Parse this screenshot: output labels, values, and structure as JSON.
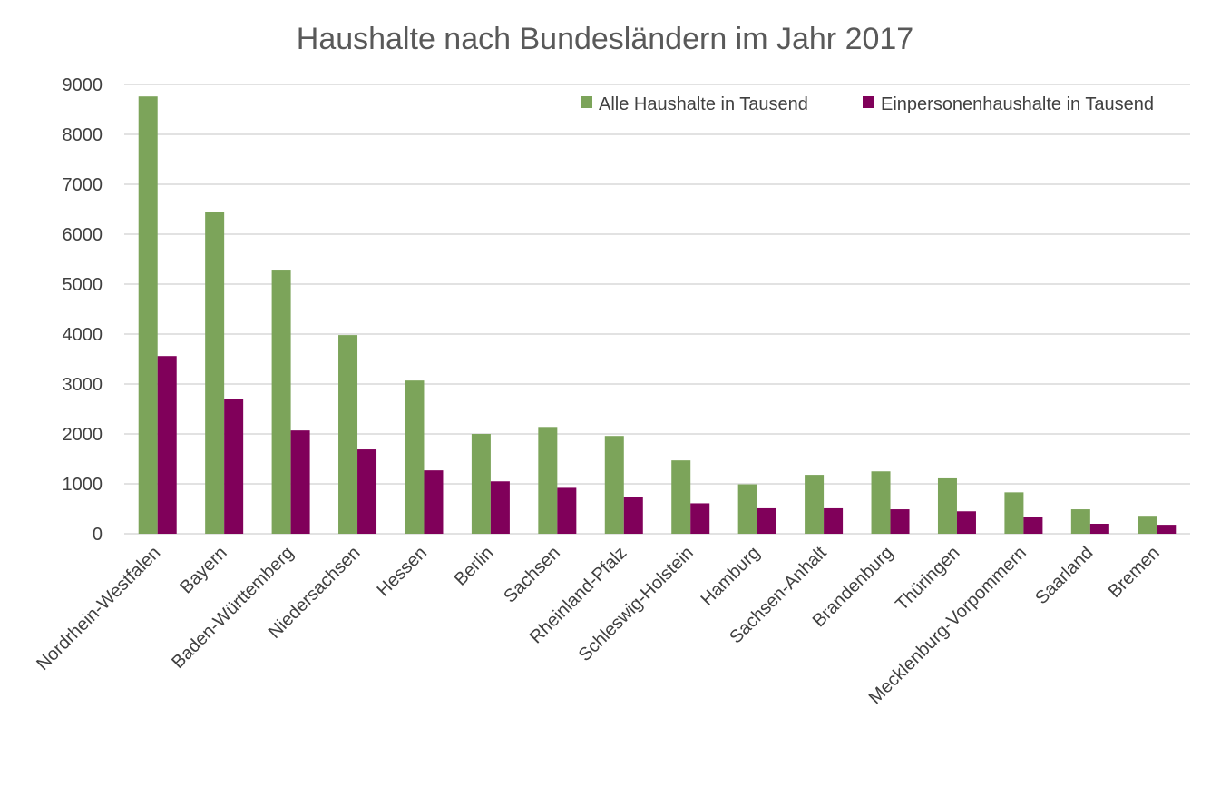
{
  "chart_data": {
    "type": "bar",
    "title": "Haushalte nach Bundesländern im Jahr 2017",
    "xlabel": "",
    "ylabel": "",
    "ylim": [
      0,
      9000
    ],
    "yticks": [
      0,
      1000,
      2000,
      3000,
      4000,
      5000,
      6000,
      7000,
      8000,
      9000
    ],
    "grid": true,
    "legend_position": "top-right",
    "categories": [
      "Nordrhein-Westfalen",
      "Bayern",
      "Baden-Württemberg",
      "Niedersachsen",
      "Hessen",
      "Berlin",
      "Sachsen",
      "Rheinland-Pfalz",
      "Schleswig-Holstein",
      "Hamburg",
      "Sachsen-Anhalt",
      "Brandenburg",
      "Thüringen",
      "Mecklenburg-Vorpommern",
      "Saarland",
      "Bremen"
    ],
    "series": [
      {
        "name": "Alle Haushalte in Tausend",
        "color": "#7ca45a",
        "values": [
          8760,
          6450,
          5290,
          3980,
          3070,
          2000,
          2140,
          1960,
          1470,
          990,
          1180,
          1250,
          1110,
          830,
          490,
          360
        ]
      },
      {
        "name": "Einpersonenhaushalte in Tausend",
        "color": "#80005a",
        "values": [
          3560,
          2700,
          2070,
          1690,
          1270,
          1050,
          920,
          740,
          610,
          510,
          510,
          490,
          450,
          340,
          200,
          180
        ]
      }
    ]
  }
}
